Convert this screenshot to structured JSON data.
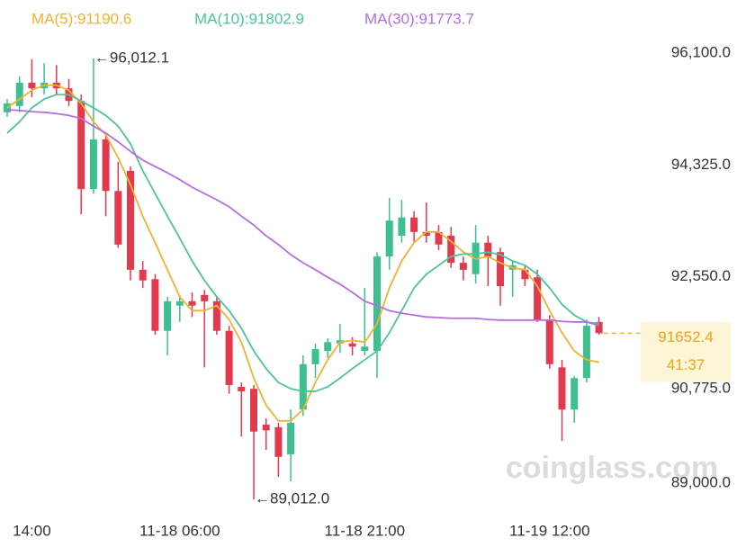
{
  "chart_data": {
    "type": "candlestick",
    "categories": [
      null,
      null,
      "14:00",
      null,
      null,
      null,
      null,
      null,
      null,
      null,
      null,
      null,
      null,
      null,
      "11-18 06:00",
      null,
      null,
      null,
      null,
      null,
      null,
      null,
      null,
      null,
      null,
      null,
      null,
      null,
      null,
      "11-18 21:00",
      null,
      null,
      null,
      null,
      null,
      null,
      null,
      null,
      null,
      null,
      null,
      null,
      null,
      null,
      "11-19 12:00",
      null,
      null,
      null,
      null
    ],
    "open": [
      95160,
      95260,
      95630,
      95540,
      95630,
      95540,
      95340,
      93940,
      94730,
      93910,
      94230,
      92660,
      92510,
      91690,
      92090,
      92160,
      92260,
      92160,
      91690,
      90800,
      90770,
      90200,
      90160,
      89730,
      90440,
      91160,
      91370,
      91490,
      91490,
      91370,
      91370,
      92870,
      93200,
      93490,
      93260,
      93260,
      93200,
      92770,
      92590,
      93090,
      92940,
      92660,
      92660,
      92540,
      91870,
      91110,
      90440,
      90940,
      91830
    ],
    "high": [
      95370,
      95730,
      96000,
      95940,
      95910,
      95690,
      95440,
      96012.1,
      94830,
      94370,
      94300,
      92800,
      92590,
      92230,
      92260,
      92300,
      92340,
      92230,
      91770,
      90870,
      90830,
      90300,
      90230,
      90440,
      91300,
      91490,
      91570,
      91800,
      91590,
      92370,
      92940,
      93800,
      93770,
      93590,
      93730,
      93370,
      93340,
      92870,
      93370,
      93200,
      93010,
      92800,
      92730,
      92660,
      91940,
      91230,
      90970,
      91870,
      91910
    ],
    "low": [
      95090,
      95160,
      95400,
      95440,
      95430,
      95260,
      93540,
      93870,
      93510,
      93010,
      92490,
      92370,
      91630,
      91300,
      91830,
      91910,
      91110,
      91630,
      90690,
      90010,
      89012,
      89800,
      89370,
      89300,
      90340,
      90940,
      91260,
      91340,
      91300,
      91300,
      90940,
      92660,
      93090,
      93110,
      93090,
      92970,
      92690,
      92490,
      92440,
      92400,
      92090,
      92230,
      92400,
      91830,
      91090,
      89940,
      90230,
      90870,
      91630
    ],
    "close": [
      95300,
      95630,
      95540,
      95630,
      95540,
      95340,
      93940,
      94730,
      93910,
      93060,
      92660,
      92490,
      91690,
      92160,
      92160,
      92090,
      92160,
      91690,
      90830,
      90730,
      90090,
      90110,
      89690,
      90230,
      91160,
      91400,
      91510,
      91540,
      91440,
      91440,
      92870,
      93440,
      93490,
      93260,
      93200,
      93060,
      92770,
      92660,
      93090,
      92870,
      92400,
      92730,
      92510,
      91870,
      91160,
      90440,
      90940,
      91770,
      91652.4
    ],
    "up_color": "#3fbf8f",
    "down_color": "#e2394f",
    "series": [
      {
        "name": "MA(5):91190.6",
        "color": "#f0b232",
        "values": [
          95230,
          95370,
          95510,
          95590,
          95590,
          95510,
          95300,
          95010,
          94800,
          94440,
          94010,
          93510,
          93090,
          92660,
          92230,
          92010,
          92010,
          92090,
          91870,
          91510,
          90940,
          90510,
          90260,
          90260,
          90440,
          90870,
          91230,
          91510,
          91540,
          91510,
          91800,
          92370,
          92800,
          93090,
          93260,
          93260,
          93110,
          92940,
          92830,
          92870,
          92770,
          92690,
          92660,
          92400,
          92010,
          91660,
          91370,
          91230,
          91190.6
        ]
      },
      {
        "name": "MA(10):91802.9",
        "color": "#4dc49a",
        "values": [
          94830,
          95010,
          95230,
          95370,
          95440,
          95440,
          95340,
          95230,
          95110,
          94940,
          94660,
          94230,
          93870,
          93510,
          93160,
          92800,
          92490,
          92230,
          92010,
          91730,
          91370,
          91090,
          90870,
          90770,
          90730,
          90730,
          90800,
          90940,
          91090,
          91230,
          91370,
          91660,
          92010,
          92370,
          92590,
          92730,
          92870,
          92910,
          92910,
          92940,
          92900,
          92800,
          92730,
          92590,
          92370,
          92110,
          91940,
          91830,
          91802.9
        ]
      },
      {
        "name": "MA(30):91773.7",
        "color": "#b56ee0",
        "values": [
          95200,
          95190,
          95170,
          95160,
          95140,
          95110,
          95060,
          94940,
          94830,
          94690,
          94540,
          94400,
          94300,
          94200,
          94090,
          93970,
          93870,
          93770,
          93660,
          93510,
          93370,
          93200,
          93060,
          92900,
          92770,
          92660,
          92540,
          92430,
          92300,
          92160,
          92090,
          92010,
          91970,
          91940,
          91910,
          91900,
          91890,
          91890,
          91890,
          91870,
          91860,
          91860,
          91860,
          91860,
          91860,
          91840,
          91830,
          91830,
          91773.7
        ]
      }
    ],
    "ylim": [
      88729,
      96943
    ],
    "yticks": [
      {
        "value": 89000,
        "label": "89,000.0"
      },
      {
        "value": 90775,
        "label": "90,775.0"
      },
      {
        "value": 92550,
        "label": "92,550.0"
      },
      {
        "value": 94325,
        "label": "94,325.0"
      },
      {
        "value": 96100,
        "label": "96,100.0"
      }
    ],
    "annotations": [
      {
        "value": 96012.1,
        "label": "←96,012.1"
      },
      {
        "value": 89012.0,
        "label": "←89,012.0"
      }
    ],
    "last_price": {
      "value": 91652.4,
      "countdown": "41:37"
    },
    "watermark": "coinglass.com"
  }
}
